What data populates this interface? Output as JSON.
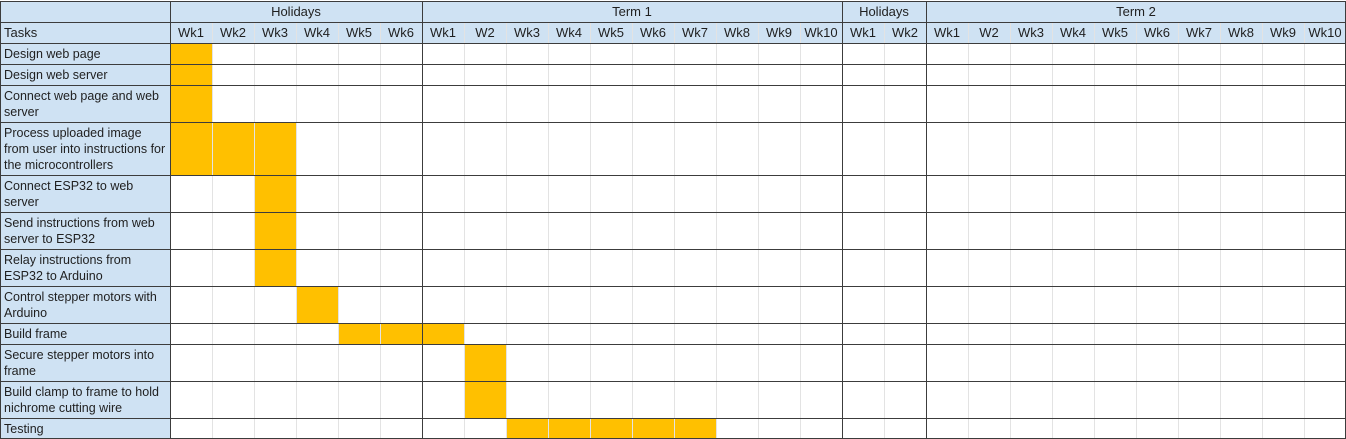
{
  "chart_data": {
    "type": "gantt",
    "tasks_header": "Tasks",
    "groups": [
      {
        "label": "Holidays",
        "weeks": [
          "Wk1",
          "Wk2",
          "Wk3",
          "Wk4",
          "Wk5",
          "Wk6"
        ]
      },
      {
        "label": "Term 1",
        "weeks": [
          "Wk1",
          "W2",
          "Wk3",
          "Wk4",
          "Wk5",
          "Wk6",
          "Wk7",
          "Wk8",
          "Wk9",
          "Wk10"
        ]
      },
      {
        "label": "Holidays",
        "weeks": [
          "Wk1",
          "Wk2"
        ]
      },
      {
        "label": "Term 2",
        "weeks": [
          "Wk1",
          "W2",
          "Wk3",
          "Wk4",
          "Wk5",
          "Wk6",
          "Wk7",
          "Wk8",
          "Wk9",
          "Wk10"
        ]
      }
    ],
    "tasks": [
      {
        "name": "Design web page",
        "start": 0,
        "end": 1
      },
      {
        "name": "Design web server",
        "start": 0,
        "end": 1
      },
      {
        "name": "Connect web page and web server",
        "start": 0,
        "end": 1
      },
      {
        "name": "Process uploaded image from user into instructions for the microcontrollers",
        "start": 0,
        "end": 3
      },
      {
        "name": "Connect ESP32 to web server",
        "start": 2,
        "end": 3
      },
      {
        "name": "Send instructions from web server to ESP32",
        "start": 2,
        "end": 3
      },
      {
        "name": "Relay instructions from ESP32 to Arduino",
        "start": 2,
        "end": 3
      },
      {
        "name": "Control stepper motors with Arduino",
        "start": 3,
        "end": 4
      },
      {
        "name": "Build frame",
        "start": 4,
        "end": 7
      },
      {
        "name": "Secure stepper motors into frame",
        "start": 7,
        "end": 8
      },
      {
        "name": "Build clamp to frame to hold nichrome cutting wire",
        "start": 7,
        "end": 8
      },
      {
        "name": "Testing",
        "start": 8,
        "end": 13
      }
    ]
  }
}
